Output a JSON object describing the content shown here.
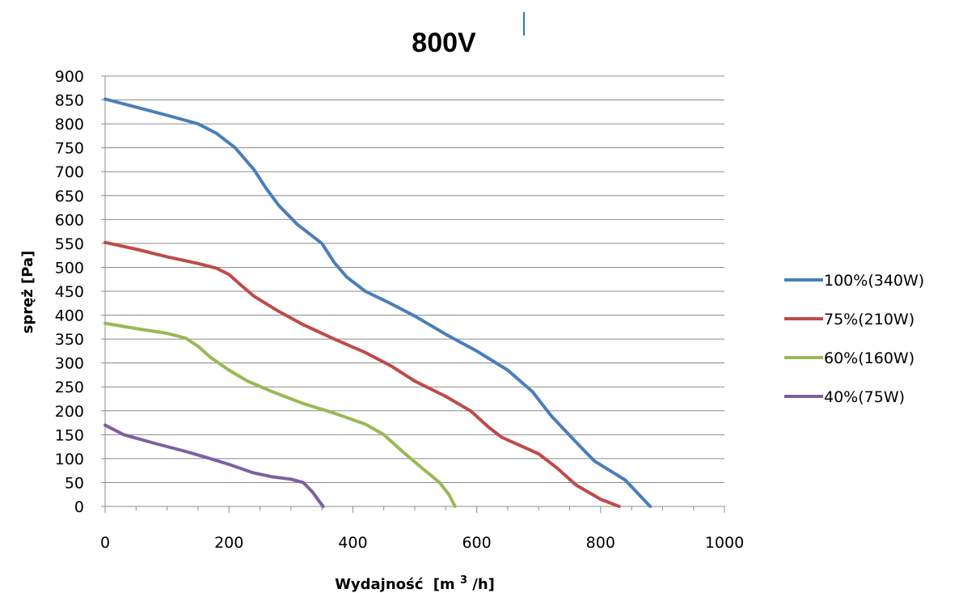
{
  "chart_data": {
    "type": "line",
    "title": "800V",
    "xlabel_main": "Wydajność",
    "xlabel_unit_pre": "[m",
    "xlabel_unit_sup": "3",
    "xlabel_unit_post": "/h]",
    "ylabel": "spręż [Pa]",
    "xlim": [
      0,
      1000
    ],
    "ylim": [
      0,
      900
    ],
    "x_ticks": [
      0,
      200,
      400,
      600,
      800,
      1000
    ],
    "y_ticks": [
      0,
      50,
      100,
      150,
      200,
      250,
      300,
      350,
      400,
      450,
      500,
      550,
      600,
      650,
      700,
      750,
      800,
      850,
      900
    ],
    "grid": "horizontal",
    "legend_position": "right",
    "series": [
      {
        "name": "100%(340W)",
        "color": "#4a7ebb",
        "points": [
          [
            0,
            852
          ],
          [
            50,
            835
          ],
          [
            100,
            818
          ],
          [
            150,
            800
          ],
          [
            180,
            780
          ],
          [
            210,
            750
          ],
          [
            240,
            705
          ],
          [
            260,
            665
          ],
          [
            280,
            630
          ],
          [
            310,
            590
          ],
          [
            350,
            550
          ],
          [
            370,
            510
          ],
          [
            390,
            480
          ],
          [
            420,
            450
          ],
          [
            460,
            425
          ],
          [
            500,
            398
          ],
          [
            550,
            360
          ],
          [
            600,
            325
          ],
          [
            650,
            285
          ],
          [
            690,
            240
          ],
          [
            720,
            190
          ],
          [
            760,
            135
          ],
          [
            790,
            95
          ],
          [
            840,
            55
          ],
          [
            880,
            0
          ]
        ]
      },
      {
        "name": "75%(210W)",
        "color": "#be4b48",
        "points": [
          [
            0,
            552
          ],
          [
            50,
            538
          ],
          [
            100,
            522
          ],
          [
            150,
            508
          ],
          [
            180,
            498
          ],
          [
            200,
            485
          ],
          [
            220,
            462
          ],
          [
            240,
            440
          ],
          [
            280,
            408
          ],
          [
            320,
            380
          ],
          [
            370,
            350
          ],
          [
            420,
            322
          ],
          [
            460,
            295
          ],
          [
            500,
            262
          ],
          [
            550,
            230
          ],
          [
            590,
            200
          ],
          [
            620,
            165
          ],
          [
            640,
            145
          ],
          [
            700,
            110
          ],
          [
            730,
            80
          ],
          [
            760,
            45
          ],
          [
            800,
            15
          ],
          [
            830,
            0
          ]
        ]
      },
      {
        "name": "60%(160W)",
        "color": "#98b954",
        "points": [
          [
            0,
            383
          ],
          [
            50,
            372
          ],
          [
            100,
            362
          ],
          [
            130,
            352
          ],
          [
            150,
            335
          ],
          [
            170,
            312
          ],
          [
            200,
            285
          ],
          [
            230,
            262
          ],
          [
            270,
            240
          ],
          [
            320,
            215
          ],
          [
            370,
            195
          ],
          [
            420,
            172
          ],
          [
            450,
            150
          ],
          [
            480,
            115
          ],
          [
            510,
            82
          ],
          [
            540,
            50
          ],
          [
            555,
            25
          ],
          [
            565,
            0
          ]
        ]
      },
      {
        "name": "40%(75W)",
        "color": "#7d60a0",
        "points": [
          [
            0,
            170
          ],
          [
            30,
            150
          ],
          [
            80,
            132
          ],
          [
            130,
            115
          ],
          [
            170,
            100
          ],
          [
            200,
            88
          ],
          [
            240,
            70
          ],
          [
            270,
            62
          ],
          [
            300,
            57
          ],
          [
            320,
            50
          ],
          [
            335,
            30
          ],
          [
            345,
            12
          ],
          [
            352,
            0
          ]
        ]
      }
    ]
  }
}
